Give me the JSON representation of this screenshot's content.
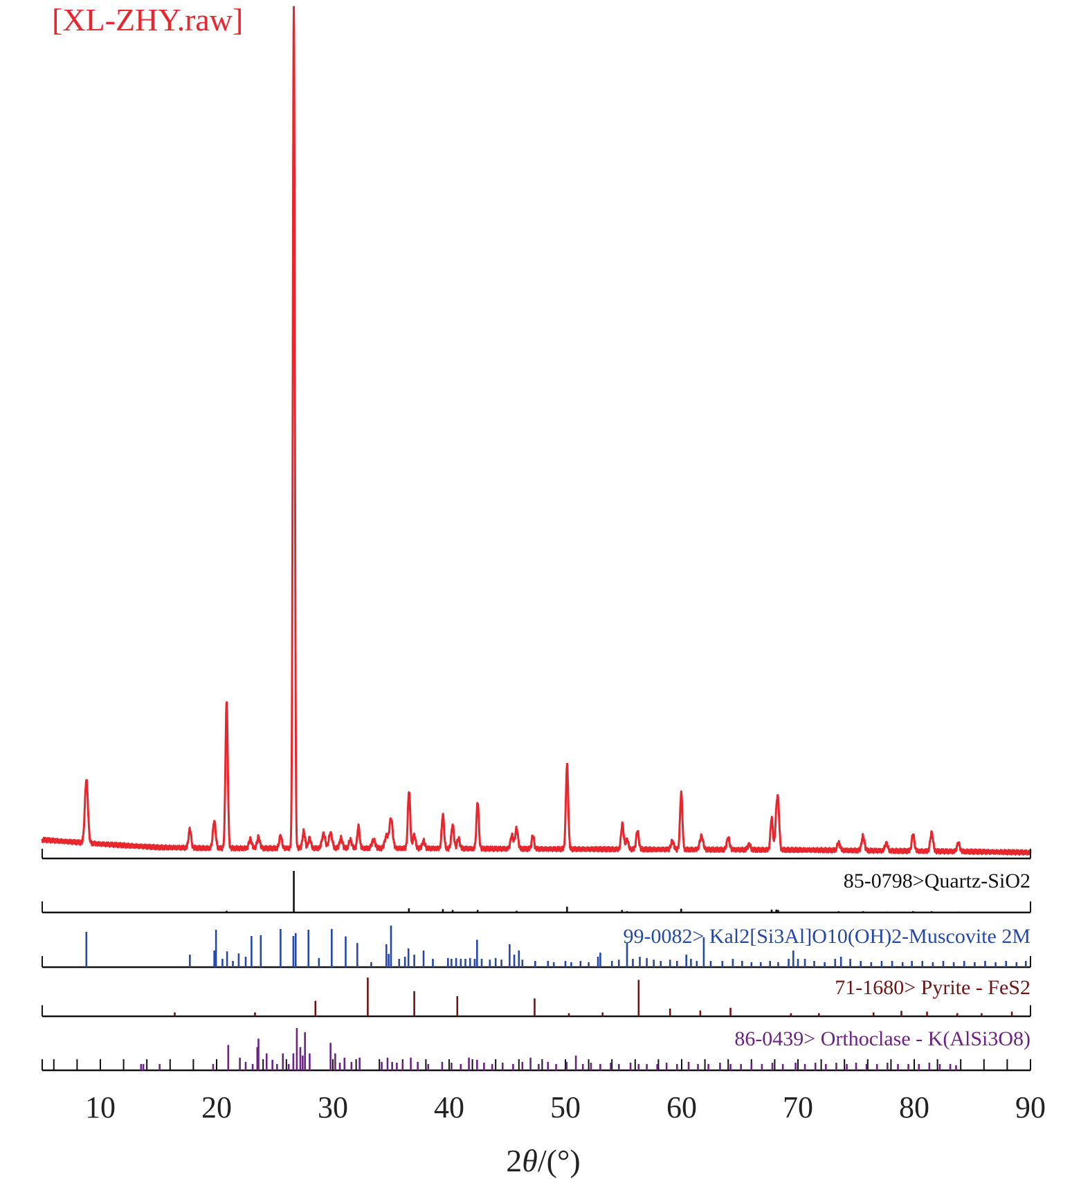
{
  "chart_data": {
    "type": "line",
    "title": "[XL-ZHY.raw]",
    "xlabel": "2θ/(°)",
    "xlabel_prefix": "2",
    "xlabel_italic": "θ",
    "xlabel_suffix": "/(°)",
    "xlim": [
      5,
      90
    ],
    "x_ticks": [
      10,
      20,
      30,
      40,
      50,
      60,
      70,
      80,
      90
    ],
    "y_axis_visible": false,
    "grid": false,
    "colors": {
      "pattern": "#e8262d",
      "quartz": "#111111",
      "muscovite": "#2547a8",
      "pyrite": "#6e1414",
      "orthoclase": "#6a2383"
    },
    "pattern": {
      "baseline": [
        [
          5,
          0.018
        ],
        [
          10,
          0.013
        ],
        [
          15,
          0.009
        ],
        [
          20,
          0.008
        ],
        [
          25,
          0.008
        ],
        [
          35,
          0.008
        ],
        [
          50,
          0.007
        ],
        [
          70,
          0.006
        ],
        [
          85,
          0.004
        ],
        [
          90,
          0.003
        ]
      ],
      "peaks": [
        [
          8.8,
          0.075,
          0.13
        ],
        [
          17.7,
          0.022,
          0.11
        ],
        [
          19.8,
          0.032,
          0.12
        ],
        [
          20.86,
          0.172,
          0.1
        ],
        [
          22.9,
          0.011,
          0.12
        ],
        [
          23.6,
          0.013,
          0.12
        ],
        [
          25.5,
          0.015,
          0.11
        ],
        [
          26.64,
          0.992,
          0.085
        ],
        [
          27.5,
          0.02,
          0.11
        ],
        [
          28.0,
          0.012,
          0.11
        ],
        [
          29.2,
          0.017,
          0.14
        ],
        [
          29.8,
          0.018,
          0.14
        ],
        [
          30.7,
          0.012,
          0.12
        ],
        [
          31.5,
          0.01,
          0.12
        ],
        [
          32.2,
          0.026,
          0.1
        ],
        [
          33.5,
          0.01,
          0.14
        ],
        [
          34.6,
          0.014,
          0.14
        ],
        [
          35.0,
          0.035,
          0.14
        ],
        [
          36.55,
          0.068,
          0.1
        ],
        [
          37.0,
          0.016,
          0.11
        ],
        [
          37.8,
          0.009,
          0.11
        ],
        [
          39.46,
          0.04,
          0.1
        ],
        [
          40.3,
          0.028,
          0.11
        ],
        [
          40.8,
          0.012,
          0.11
        ],
        [
          42.45,
          0.055,
          0.1
        ],
        [
          45.4,
          0.016,
          0.12
        ],
        [
          45.8,
          0.024,
          0.12
        ],
        [
          47.2,
          0.016,
          0.1
        ],
        [
          50.14,
          0.1,
          0.1
        ],
        [
          54.9,
          0.03,
          0.11
        ],
        [
          55.3,
          0.012,
          0.11
        ],
        [
          56.2,
          0.022,
          0.11
        ],
        [
          59.2,
          0.01,
          0.12
        ],
        [
          59.96,
          0.067,
          0.1
        ],
        [
          61.7,
          0.016,
          0.14
        ],
        [
          64.0,
          0.014,
          0.12
        ],
        [
          65.8,
          0.006,
          0.12
        ],
        [
          67.74,
          0.038,
          0.1
        ],
        [
          68.14,
          0.036,
          0.1
        ],
        [
          68.3,
          0.05,
          0.1
        ],
        [
          73.5,
          0.009,
          0.12
        ],
        [
          75.6,
          0.017,
          0.12
        ],
        [
          77.6,
          0.009,
          0.12
        ],
        [
          79.9,
          0.02,
          0.11
        ],
        [
          81.5,
          0.022,
          0.12
        ],
        [
          83.8,
          0.01,
          0.12
        ]
      ]
    },
    "references": [
      {
        "name": "85-0798>Quartz-SiO2",
        "color_key": "quartz",
        "sticks": [
          [
            20.86,
            0.04
          ],
          [
            26.64,
            1.0
          ],
          [
            36.54,
            0.1
          ],
          [
            39.46,
            0.08
          ],
          [
            40.3,
            0.06
          ],
          [
            42.45,
            0.06
          ],
          [
            45.8,
            0.04
          ],
          [
            50.14,
            0.14
          ],
          [
            54.87,
            0.06
          ],
          [
            55.3,
            0.03
          ],
          [
            59.96,
            0.09
          ],
          [
            67.74,
            0.07
          ],
          [
            68.14,
            0.07
          ],
          [
            68.3,
            0.06
          ],
          [
            73.5,
            0.03
          ],
          [
            75.6,
            0.03
          ],
          [
            77.7,
            0.02
          ],
          [
            79.9,
            0.03
          ],
          [
            81.5,
            0.03
          ],
          [
            83.8,
            0.02
          ]
        ]
      },
      {
        "name": "99-0082> Kal2[Si3Al]O10(OH)2-Muscovite 2M",
        "color_key": "muscovite",
        "sticks": [
          [
            8.8,
            0.85
          ],
          [
            17.7,
            0.3
          ],
          [
            19.8,
            0.4
          ],
          [
            19.95,
            0.9
          ],
          [
            20.5,
            0.2
          ],
          [
            20.9,
            0.38
          ],
          [
            21.4,
            0.15
          ],
          [
            21.9,
            0.33
          ],
          [
            22.5,
            0.25
          ],
          [
            23.0,
            0.75
          ],
          [
            23.8,
            0.77
          ],
          [
            25.5,
            0.92
          ],
          [
            26.6,
            0.75
          ],
          [
            26.8,
            0.82
          ],
          [
            27.9,
            0.9
          ],
          [
            28.8,
            0.22
          ],
          [
            29.9,
            0.92
          ],
          [
            31.1,
            0.74
          ],
          [
            32.1,
            0.58
          ],
          [
            33.3,
            0.12
          ],
          [
            34.6,
            0.55
          ],
          [
            34.8,
            0.32
          ],
          [
            35.0,
            1.0
          ],
          [
            35.7,
            0.2
          ],
          [
            36.2,
            0.25
          ],
          [
            36.5,
            0.45
          ],
          [
            37.0,
            0.3
          ],
          [
            37.8,
            0.4
          ],
          [
            38.6,
            0.2
          ],
          [
            39.9,
            0.22
          ],
          [
            40.2,
            0.2
          ],
          [
            40.6,
            0.22
          ],
          [
            41.0,
            0.2
          ],
          [
            41.4,
            0.2
          ],
          [
            41.8,
            0.22
          ],
          [
            42.2,
            0.2
          ],
          [
            42.4,
            0.66
          ],
          [
            42.8,
            0.2
          ],
          [
            43.5,
            0.18
          ],
          [
            44.0,
            0.22
          ],
          [
            44.5,
            0.18
          ],
          [
            45.2,
            0.55
          ],
          [
            45.6,
            0.3
          ],
          [
            46.0,
            0.4
          ],
          [
            46.3,
            0.18
          ],
          [
            47.4,
            0.15
          ],
          [
            48.5,
            0.15
          ],
          [
            49.0,
            0.12
          ],
          [
            50.0,
            0.15
          ],
          [
            50.5,
            0.12
          ],
          [
            51.3,
            0.15
          ],
          [
            52.0,
            0.12
          ],
          [
            52.8,
            0.25
          ],
          [
            53.0,
            0.35
          ],
          [
            54.0,
            0.15
          ],
          [
            54.6,
            0.18
          ],
          [
            55.3,
            0.58
          ],
          [
            55.8,
            0.2
          ],
          [
            56.4,
            0.25
          ],
          [
            57.0,
            0.22
          ],
          [
            57.6,
            0.18
          ],
          [
            58.2,
            0.15
          ],
          [
            59.0,
            0.18
          ],
          [
            59.6,
            0.15
          ],
          [
            60.4,
            0.3
          ],
          [
            60.8,
            0.2
          ],
          [
            61.3,
            0.15
          ],
          [
            61.9,
            0.72
          ],
          [
            62.5,
            0.15
          ],
          [
            63.5,
            0.15
          ],
          [
            64.4,
            0.2
          ],
          [
            65.2,
            0.15
          ],
          [
            66.0,
            0.12
          ],
          [
            66.8,
            0.12
          ],
          [
            67.6,
            0.15
          ],
          [
            68.3,
            0.12
          ],
          [
            69.2,
            0.2
          ],
          [
            69.6,
            0.4
          ],
          [
            70.0,
            0.2
          ],
          [
            70.6,
            0.2
          ],
          [
            71.4,
            0.15
          ],
          [
            72.3,
            0.12
          ],
          [
            73.2,
            0.2
          ],
          [
            73.7,
            0.25
          ],
          [
            74.5,
            0.2
          ],
          [
            75.4,
            0.15
          ],
          [
            76.3,
            0.12
          ],
          [
            77.2,
            0.15
          ],
          [
            78.1,
            0.15
          ],
          [
            79.0,
            0.12
          ],
          [
            79.8,
            0.15
          ],
          [
            80.7,
            0.15
          ],
          [
            81.6,
            0.12
          ],
          [
            82.5,
            0.15
          ],
          [
            83.4,
            0.12
          ],
          [
            84.3,
            0.15
          ],
          [
            85.2,
            0.12
          ],
          [
            86.1,
            0.15
          ],
          [
            87.0,
            0.12
          ],
          [
            87.9,
            0.15
          ],
          [
            88.8,
            0.12
          ],
          [
            89.6,
            0.15
          ]
        ]
      },
      {
        "name": "71-1680> Pyrite - FeS2",
        "color_key": "pyrite",
        "sticks": [
          [
            16.4,
            0.1
          ],
          [
            23.3,
            0.1
          ],
          [
            28.5,
            0.4
          ],
          [
            33.0,
            1.0
          ],
          [
            37.0,
            0.65
          ],
          [
            40.7,
            0.52
          ],
          [
            47.35,
            0.46
          ],
          [
            50.3,
            0.08
          ],
          [
            53.2,
            0.1
          ],
          [
            56.3,
            0.94
          ],
          [
            59.0,
            0.2
          ],
          [
            61.6,
            0.15
          ],
          [
            64.2,
            0.22
          ],
          [
            69.4,
            0.08
          ],
          [
            71.8,
            0.08
          ],
          [
            76.5,
            0.1
          ],
          [
            78.9,
            0.14
          ],
          [
            81.1,
            0.12
          ],
          [
            83.7,
            0.08
          ],
          [
            85.8,
            0.08
          ],
          [
            88.4,
            0.12
          ]
        ]
      },
      {
        "name": "86-0439> Orthoclase - K(AlSi3O8)",
        "color_key": "orthoclase",
        "sticks": [
          [
            13.5,
            0.15
          ],
          [
            13.7,
            0.15
          ],
          [
            15.1,
            0.15
          ],
          [
            19.7,
            0.15
          ],
          [
            21.0,
            0.6
          ],
          [
            22.0,
            0.3
          ],
          [
            22.5,
            0.2
          ],
          [
            23.1,
            0.15
          ],
          [
            23.5,
            0.55
          ],
          [
            23.6,
            0.75
          ],
          [
            24.3,
            0.4
          ],
          [
            24.8,
            0.25
          ],
          [
            25.2,
            0.15
          ],
          [
            25.7,
            0.4
          ],
          [
            26.2,
            0.15
          ],
          [
            26.6,
            0.4
          ],
          [
            26.9,
            1.0
          ],
          [
            27.2,
            0.55
          ],
          [
            27.4,
            0.35
          ],
          [
            27.6,
            0.9
          ],
          [
            28.0,
            0.4
          ],
          [
            29.8,
            0.65
          ],
          [
            30.2,
            0.4
          ],
          [
            30.6,
            0.18
          ],
          [
            31.0,
            0.3
          ],
          [
            31.6,
            0.2
          ],
          [
            32.3,
            0.3
          ],
          [
            34.2,
            0.2
          ],
          [
            34.7,
            0.3
          ],
          [
            35.1,
            0.2
          ],
          [
            35.5,
            0.18
          ],
          [
            36.0,
            0.2
          ],
          [
            36.7,
            0.3
          ],
          [
            37.3,
            0.2
          ],
          [
            38.2,
            0.15
          ],
          [
            39.4,
            0.2
          ],
          [
            40.2,
            0.18
          ],
          [
            41.0,
            0.15
          ],
          [
            41.7,
            0.3
          ],
          [
            42.4,
            0.25
          ],
          [
            43.0,
            0.18
          ],
          [
            43.7,
            0.15
          ],
          [
            44.6,
            0.18
          ],
          [
            45.5,
            0.15
          ],
          [
            46.3,
            0.2
          ],
          [
            47.0,
            0.3
          ],
          [
            47.7,
            0.15
          ],
          [
            48.5,
            0.2
          ],
          [
            49.2,
            0.15
          ],
          [
            50.1,
            0.2
          ],
          [
            50.9,
            0.35
          ],
          [
            51.5,
            0.15
          ],
          [
            52.2,
            0.18
          ],
          [
            53.0,
            0.15
          ],
          [
            53.9,
            0.18
          ],
          [
            54.6,
            0.15
          ],
          [
            55.6,
            0.18
          ],
          [
            56.3,
            0.15
          ],
          [
            57.0,
            0.15
          ],
          [
            57.9,
            0.15
          ],
          [
            58.7,
            0.18
          ],
          [
            59.6,
            0.15
          ],
          [
            60.6,
            0.2
          ],
          [
            61.4,
            0.15
          ],
          [
            62.3,
            0.15
          ],
          [
            63.3,
            0.18
          ],
          [
            64.2,
            0.15
          ],
          [
            65.1,
            0.15
          ],
          [
            66.0,
            0.18
          ],
          [
            66.9,
            0.15
          ],
          [
            67.8,
            0.18
          ],
          [
            68.7,
            0.15
          ],
          [
            69.8,
            0.18
          ],
          [
            70.6,
            0.15
          ],
          [
            71.5,
            0.18
          ],
          [
            72.4,
            0.15
          ],
          [
            73.3,
            0.18
          ],
          [
            74.2,
            0.15
          ],
          [
            75.0,
            0.18
          ],
          [
            75.9,
            0.15
          ],
          [
            76.8,
            0.15
          ],
          [
            77.7,
            0.18
          ],
          [
            78.6,
            0.15
          ],
          [
            79.5,
            0.15
          ],
          [
            80.4,
            0.15
          ],
          [
            81.3,
            0.18
          ],
          [
            82.2,
            0.15
          ],
          [
            83.1,
            0.15
          ],
          [
            83.6,
            0.12
          ]
        ]
      }
    ]
  }
}
